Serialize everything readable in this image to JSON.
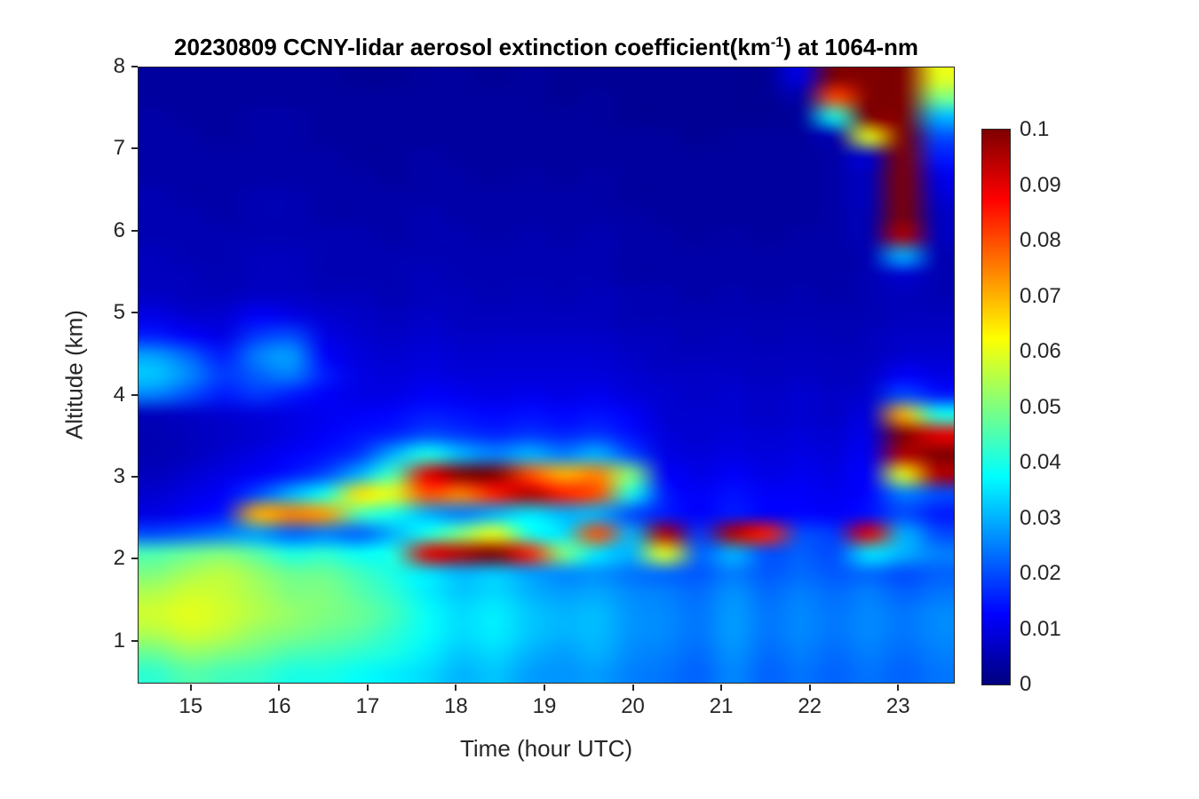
{
  "figure": {
    "title": {
      "prefix": "20230809 CCNY-lidar aerosol extinction coefficient(km",
      "sup": "-1",
      "suffix": ") at 1064-nm"
    },
    "xlabel": "Time (hour UTC)",
    "ylabel": "Altitude (km)"
  },
  "chart_data": {
    "type": "heatmap",
    "title": "20230809 CCNY-lidar aerosol extinction coefficient(km^-1) at 1064-nm",
    "xlabel": "Time (hour UTC)",
    "ylabel": "Altitude (km)",
    "colormap": "jet",
    "clim": [
      0,
      0.1
    ],
    "x_range": [
      14.4,
      23.62
    ],
    "y_range": [
      0.5,
      8.0
    ],
    "x_ticks": [
      15,
      16,
      17,
      18,
      19,
      20,
      21,
      22,
      23
    ],
    "y_ticks": [
      1,
      2,
      3,
      4,
      5,
      6,
      7,
      8
    ],
    "colorbar_ticks": {
      "values": [
        0,
        0.01,
        0.02,
        0.03,
        0.04,
        0.05,
        0.06,
        0.07,
        0.08,
        0.09,
        0.1
      ],
      "labels": [
        "0",
        "0.01",
        "0.02",
        "0.03",
        "0.04",
        "0.05",
        "0.06",
        "0.07",
        "0.08",
        "0.09",
        "0.1"
      ]
    },
    "grid_x": [
      14.4,
      14.8,
      15.2,
      15.6,
      16.0,
      16.4,
      16.8,
      17.2,
      17.6,
      18.0,
      18.4,
      18.8,
      19.2,
      19.6,
      20.0,
      20.4,
      20.8,
      21.2,
      21.6,
      22.0,
      22.4,
      22.8,
      23.2,
      23.6
    ],
    "grid_y": [
      0.5,
      0.75,
      1.0,
      1.25,
      1.5,
      1.75,
      2.0,
      2.25,
      2.5,
      2.75,
      3.0,
      3.25,
      3.5,
      3.75,
      4.0,
      4.25,
      4.5,
      4.75,
      5.0,
      5.25,
      5.5,
      5.75,
      6.0,
      6.25,
      6.5,
      6.75,
      7.0,
      7.25,
      7.5,
      7.75,
      8.0
    ],
    "values": [
      [
        0.042,
        0.046,
        0.044,
        0.043,
        0.04,
        0.04,
        0.038,
        0.036,
        0.034,
        0.03,
        0.032,
        0.028,
        0.027,
        0.028,
        0.025,
        0.024,
        0.022,
        0.026,
        0.022,
        0.024,
        0.022,
        0.024,
        0.022,
        0.024
      ],
      [
        0.048,
        0.052,
        0.05,
        0.048,
        0.045,
        0.044,
        0.042,
        0.04,
        0.036,
        0.032,
        0.034,
        0.03,
        0.028,
        0.03,
        0.026,
        0.025,
        0.023,
        0.027,
        0.023,
        0.025,
        0.023,
        0.025,
        0.023,
        0.025
      ],
      [
        0.055,
        0.058,
        0.056,
        0.052,
        0.05,
        0.048,
        0.046,
        0.042,
        0.038,
        0.034,
        0.036,
        0.032,
        0.03,
        0.031,
        0.027,
        0.026,
        0.024,
        0.028,
        0.024,
        0.026,
        0.024,
        0.026,
        0.024,
        0.026
      ],
      [
        0.058,
        0.06,
        0.058,
        0.055,
        0.052,
        0.05,
        0.048,
        0.044,
        0.038,
        0.034,
        0.036,
        0.032,
        0.03,
        0.031,
        0.027,
        0.026,
        0.024,
        0.028,
        0.024,
        0.026,
        0.024,
        0.026,
        0.024,
        0.026
      ],
      [
        0.055,
        0.058,
        0.057,
        0.054,
        0.05,
        0.05,
        0.046,
        0.042,
        0.036,
        0.032,
        0.034,
        0.03,
        0.028,
        0.029,
        0.026,
        0.025,
        0.023,
        0.027,
        0.023,
        0.025,
        0.023,
        0.025,
        0.022,
        0.024
      ],
      [
        0.05,
        0.054,
        0.056,
        0.052,
        0.048,
        0.048,
        0.044,
        0.04,
        0.035,
        0.03,
        0.032,
        0.028,
        0.026,
        0.027,
        0.024,
        0.023,
        0.021,
        0.025,
        0.021,
        0.023,
        0.021,
        0.023,
        0.02,
        0.022
      ],
      [
        0.045,
        0.048,
        0.05,
        0.046,
        0.04,
        0.042,
        0.038,
        0.04,
        0.09,
        0.095,
        0.1,
        0.085,
        0.05,
        0.035,
        0.03,
        0.06,
        0.022,
        0.03,
        0.02,
        0.022,
        0.02,
        0.035,
        0.03,
        0.025
      ],
      [
        0.02,
        0.022,
        0.025,
        0.028,
        0.022,
        0.025,
        0.022,
        0.03,
        0.04,
        0.05,
        0.06,
        0.04,
        0.035,
        0.08,
        0.03,
        0.095,
        0.018,
        0.095,
        0.085,
        0.02,
        0.018,
        0.09,
        0.03,
        0.02
      ],
      [
        0.01,
        0.012,
        0.015,
        0.07,
        0.075,
        0.072,
        0.045,
        0.04,
        0.03,
        0.025,
        0.03,
        0.035,
        0.03,
        0.03,
        0.02,
        0.015,
        0.012,
        0.015,
        0.012,
        0.013,
        0.012,
        0.014,
        0.02,
        0.015
      ],
      [
        0.008,
        0.01,
        0.012,
        0.02,
        0.03,
        0.04,
        0.065,
        0.06,
        0.08,
        0.075,
        0.085,
        0.095,
        0.085,
        0.08,
        0.04,
        0.015,
        0.012,
        0.014,
        0.012,
        0.012,
        0.011,
        0.013,
        0.025,
        0.02
      ],
      [
        0.006,
        0.008,
        0.01,
        0.012,
        0.015,
        0.02,
        0.03,
        0.045,
        0.09,
        0.1,
        0.1,
        0.08,
        0.07,
        0.075,
        0.05,
        0.012,
        0.01,
        0.012,
        0.01,
        0.011,
        0.01,
        0.012,
        0.06,
        0.095
      ],
      [
        0.005,
        0.006,
        0.008,
        0.01,
        0.012,
        0.014,
        0.018,
        0.03,
        0.04,
        0.03,
        0.025,
        0.03,
        0.025,
        0.03,
        0.02,
        0.01,
        0.009,
        0.01,
        0.009,
        0.01,
        0.009,
        0.011,
        0.095,
        0.1
      ],
      [
        0.005,
        0.006,
        0.007,
        0.008,
        0.01,
        0.012,
        0.014,
        0.016,
        0.02,
        0.018,
        0.016,
        0.018,
        0.016,
        0.018,
        0.014,
        0.009,
        0.008,
        0.009,
        0.008,
        0.009,
        0.008,
        0.01,
        0.1,
        0.09
      ],
      [
        0.006,
        0.007,
        0.008,
        0.009,
        0.01,
        0.011,
        0.012,
        0.013,
        0.015,
        0.014,
        0.013,
        0.014,
        0.013,
        0.014,
        0.012,
        0.008,
        0.008,
        0.008,
        0.007,
        0.008,
        0.007,
        0.009,
        0.07,
        0.04
      ],
      [
        0.025,
        0.02,
        0.015,
        0.018,
        0.015,
        0.012,
        0.01,
        0.01,
        0.012,
        0.011,
        0.01,
        0.011,
        0.01,
        0.011,
        0.009,
        0.008,
        0.007,
        0.008,
        0.007,
        0.008,
        0.007,
        0.008,
        0.02,
        0.015
      ],
      [
        0.032,
        0.026,
        0.018,
        0.022,
        0.025,
        0.015,
        0.01,
        0.009,
        0.01,
        0.009,
        0.009,
        0.009,
        0.009,
        0.009,
        0.008,
        0.007,
        0.007,
        0.007,
        0.006,
        0.007,
        0.006,
        0.007,
        0.012,
        0.01
      ],
      [
        0.028,
        0.022,
        0.015,
        0.025,
        0.028,
        0.012,
        0.009,
        0.008,
        0.009,
        0.008,
        0.008,
        0.008,
        0.008,
        0.008,
        0.007,
        0.006,
        0.006,
        0.006,
        0.006,
        0.006,
        0.006,
        0.006,
        0.008,
        0.008
      ],
      [
        0.015,
        0.012,
        0.01,
        0.018,
        0.02,
        0.01,
        0.008,
        0.007,
        0.008,
        0.007,
        0.007,
        0.007,
        0.007,
        0.007,
        0.006,
        0.006,
        0.005,
        0.006,
        0.005,
        0.006,
        0.005,
        0.006,
        0.007,
        0.007
      ],
      [
        0.01,
        0.008,
        0.008,
        0.012,
        0.01,
        0.008,
        0.007,
        0.006,
        0.007,
        0.006,
        0.006,
        0.006,
        0.006,
        0.006,
        0.005,
        0.005,
        0.005,
        0.005,
        0.005,
        0.005,
        0.005,
        0.005,
        0.006,
        0.006
      ],
      [
        0.007,
        0.006,
        0.006,
        0.007,
        0.007,
        0.006,
        0.006,
        0.005,
        0.006,
        0.006,
        0.005,
        0.006,
        0.005,
        0.006,
        0.005,
        0.005,
        0.004,
        0.005,
        0.004,
        0.005,
        0.004,
        0.005,
        0.006,
        0.005
      ],
      [
        0.006,
        0.006,
        0.005,
        0.006,
        0.006,
        0.005,
        0.005,
        0.005,
        0.006,
        0.005,
        0.005,
        0.005,
        0.005,
        0.005,
        0.004,
        0.004,
        0.004,
        0.004,
        0.004,
        0.004,
        0.004,
        0.005,
        0.008,
        0.005
      ],
      [
        0.006,
        0.005,
        0.005,
        0.006,
        0.006,
        0.005,
        0.005,
        0.005,
        0.005,
        0.005,
        0.005,
        0.005,
        0.005,
        0.005,
        0.004,
        0.004,
        0.004,
        0.004,
        0.004,
        0.004,
        0.004,
        0.005,
        0.03,
        0.005
      ],
      [
        0.005,
        0.005,
        0.005,
        0.005,
        0.005,
        0.005,
        0.005,
        0.004,
        0.005,
        0.005,
        0.004,
        0.005,
        0.004,
        0.005,
        0.004,
        0.004,
        0.003,
        0.004,
        0.003,
        0.004,
        0.004,
        0.005,
        0.095,
        0.006
      ],
      [
        0.005,
        0.005,
        0.004,
        0.005,
        0.005,
        0.004,
        0.004,
        0.004,
        0.005,
        0.004,
        0.004,
        0.004,
        0.004,
        0.004,
        0.004,
        0.003,
        0.003,
        0.003,
        0.003,
        0.003,
        0.004,
        0.005,
        0.1,
        0.006
      ],
      [
        0.005,
        0.004,
        0.004,
        0.005,
        0.005,
        0.004,
        0.004,
        0.004,
        0.004,
        0.004,
        0.004,
        0.004,
        0.004,
        0.004,
        0.003,
        0.003,
        0.003,
        0.003,
        0.003,
        0.003,
        0.004,
        0.006,
        0.1,
        0.008
      ],
      [
        0.004,
        0.004,
        0.004,
        0.004,
        0.004,
        0.004,
        0.004,
        0.003,
        0.004,
        0.004,
        0.003,
        0.004,
        0.003,
        0.004,
        0.003,
        0.003,
        0.003,
        0.003,
        0.003,
        0.003,
        0.004,
        0.006,
        0.1,
        0.01
      ],
      [
        0.004,
        0.004,
        0.004,
        0.004,
        0.004,
        0.004,
        0.003,
        0.003,
        0.004,
        0.003,
        0.003,
        0.003,
        0.003,
        0.003,
        0.003,
        0.003,
        0.003,
        0.003,
        0.003,
        0.003,
        0.004,
        0.008,
        0.1,
        0.015
      ],
      [
        0.004,
        0.004,
        0.003,
        0.004,
        0.004,
        0.003,
        0.003,
        0.003,
        0.003,
        0.003,
        0.003,
        0.003,
        0.003,
        0.003,
        0.003,
        0.003,
        0.002,
        0.003,
        0.003,
        0.003,
        0.005,
        0.06,
        0.1,
        0.02
      ],
      [
        0.004,
        0.003,
        0.003,
        0.004,
        0.004,
        0.003,
        0.003,
        0.003,
        0.003,
        0.003,
        0.003,
        0.003,
        0.003,
        0.003,
        0.002,
        0.002,
        0.002,
        0.002,
        0.002,
        0.003,
        0.04,
        0.1,
        0.1,
        0.03
      ],
      [
        0.003,
        0.003,
        0.003,
        0.003,
        0.003,
        0.003,
        0.003,
        0.003,
        0.003,
        0.003,
        0.003,
        0.003,
        0.002,
        0.003,
        0.002,
        0.002,
        0.002,
        0.002,
        0.002,
        0.004,
        0.08,
        0.1,
        0.1,
        0.05
      ],
      [
        0.003,
        0.003,
        0.003,
        0.003,
        0.003,
        0.003,
        0.002,
        0.002,
        0.003,
        0.003,
        0.002,
        0.003,
        0.002,
        0.002,
        0.002,
        0.002,
        0.002,
        0.002,
        0.002,
        0.01,
        0.1,
        0.1,
        0.1,
        0.06
      ]
    ]
  }
}
